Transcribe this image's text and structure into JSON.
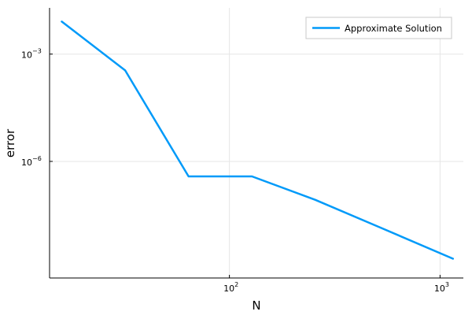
{
  "chart_data": {
    "type": "line",
    "xlabel": "N",
    "ylabel": "error",
    "xscale": "log",
    "yscale": "log",
    "xlim": [
      14,
      1290
    ],
    "ylim": [
      5.5e-10,
      0.0196
    ],
    "grid": true,
    "legend_position": "top-right",
    "x_ticks": [
      {
        "value": 100,
        "base": "10",
        "exponent": "2"
      },
      {
        "value": 1000,
        "base": "10",
        "exponent": "3"
      }
    ],
    "y_ticks": [
      {
        "value": 1e-06,
        "base": "10",
        "exponent": "−6"
      },
      {
        "value": 0.001,
        "base": "10",
        "exponent": "−3"
      }
    ],
    "series": [
      {
        "name": "Approximate Solution",
        "color": "#009af9",
        "x": [
          16,
          32,
          64,
          128,
          256,
          512,
          1152
        ],
        "y": [
          0.0081,
          0.00035,
          3.8e-07,
          3.8e-07,
          8.4e-08,
          1.48e-08,
          1.9e-09
        ]
      }
    ]
  }
}
